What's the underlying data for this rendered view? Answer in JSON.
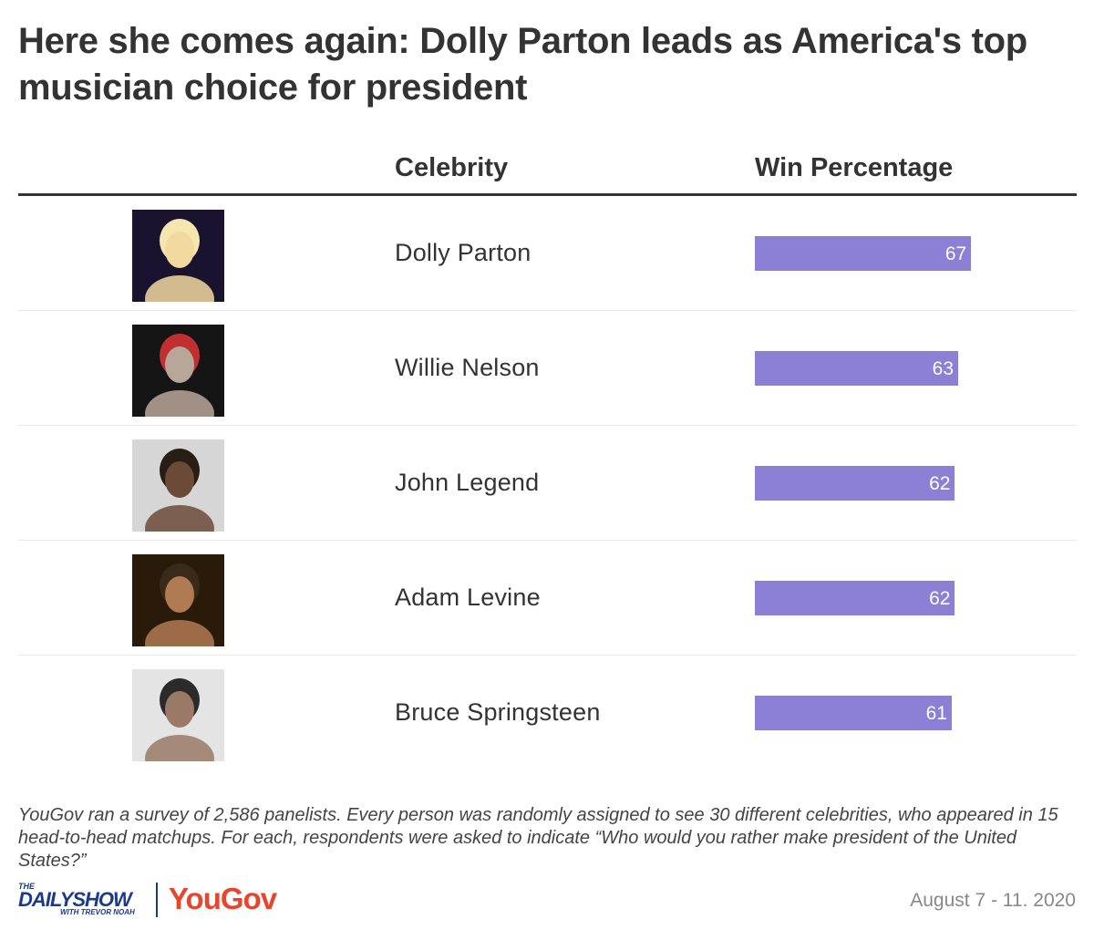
{
  "title": "Here she comes again: Dolly Parton leads as America's top musician choice for president",
  "columns": {
    "celebrity": "Celebrity",
    "win": "Win Percentage"
  },
  "chart_data": {
    "type": "bar",
    "orientation": "horizontal",
    "title": "Here she comes again: Dolly Parton leads as America's top musician choice for president",
    "categories": [
      "Dolly Parton",
      "Willie Nelson",
      "John Legend",
      "Adam Levine",
      "Bruce Springsteen"
    ],
    "values": [
      67,
      63,
      62,
      62,
      61
    ],
    "xlim": [
      0,
      100
    ],
    "bar_color": "#8b7fd6",
    "grid": false,
    "legend": "none"
  },
  "footnote": "YouGov ran a survey of 2,586 panelists. Every person was randomly assigned to see 30 different celebrities, who appeared in 15 head-to-head matchups. For each, respondents were asked to indicate “Who would you rather make president of the United States?”",
  "logos": {
    "daily_show_the": "THE",
    "daily_show_name": "DAILYSHOW",
    "daily_show_with": "WITH TREVOR NOAH",
    "yougov": "YouGov"
  },
  "date": "August 7 - 11. 2020",
  "colors": {
    "bar": "#8b7fd6",
    "title": "#333333",
    "yougov": "#e8452c",
    "daily_show": "#1b3a8c"
  }
}
